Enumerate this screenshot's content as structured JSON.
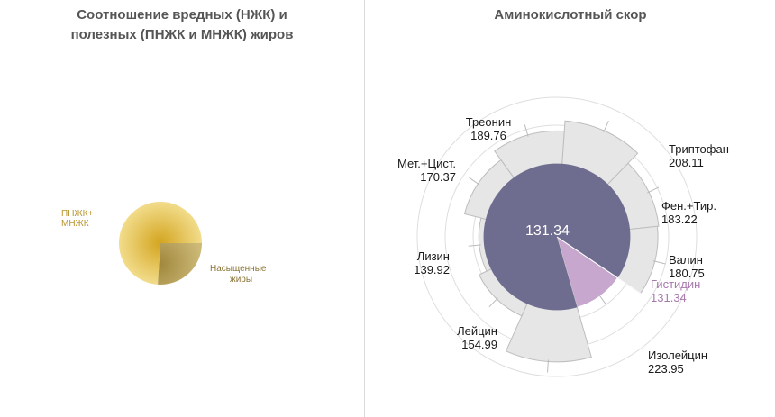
{
  "chart_data": [
    {
      "type": "pie",
      "title_lines": [
        "Соотношение вредных (НЖК) и",
        "полезных (ПНЖК и МНЖК) жиров"
      ],
      "slices": [
        {
          "label_lines": [
            "ПНЖК+",
            "МНЖК"
          ],
          "value": 0.74,
          "color": "#d8b23c"
        },
        {
          "label_lines": [
            "Насыщенные",
            "жиры"
          ],
          "value": 0.26,
          "color": "#a48d45"
        }
      ]
    },
    {
      "type": "polar-area",
      "title": "Аминокислотный скор",
      "center_value": "131.34",
      "rings": [
        50,
        100,
        150,
        200,
        250
      ],
      "reference_color": "#6e6d8f",
      "highlight_color": "#c8a7cf",
      "categories": [
        {
          "name": "Триптофан",
          "value": 208.11
        },
        {
          "name": "Фен.+Тир.",
          "value": 183.22
        },
        {
          "name": "Валин",
          "value": 180.75
        },
        {
          "name": "Гистидин",
          "value": 131.34,
          "highlight": true
        },
        {
          "name": "Изолейцин",
          "value": 223.95
        },
        {
          "name": "Лейцин",
          "value": 154.99
        },
        {
          "name": "Лизин",
          "value": 139.92
        },
        {
          "name": "Мет.+Цист.",
          "value": 170.37
        },
        {
          "name": "Треонин",
          "value": 189.76
        }
      ]
    }
  ]
}
